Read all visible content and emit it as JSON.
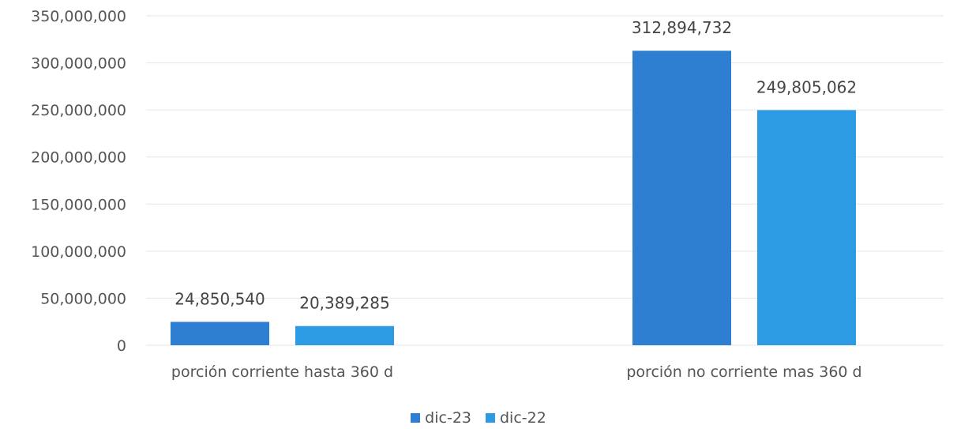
{
  "chart_data": {
    "type": "bar",
    "title": "",
    "xlabel": "",
    "ylabel": "",
    "categories": [
      "porción corriente hasta 360 d",
      "porción no corriente mas 360 d"
    ],
    "series": [
      {
        "name": "dic-23",
        "color": "#2e7fd2",
        "values": [
          24850540,
          312894732
        ]
      },
      {
        "name": "dic-22",
        "color": "#2d9be3",
        "values": [
          20389285,
          249805062
        ]
      }
    ],
    "data_labels": [
      [
        "24,850,540",
        "312,894,732"
      ],
      [
        "20,389,285",
        "249,805,062"
      ]
    ],
    "ylim": [
      0,
      350000000
    ],
    "yticks": [
      0,
      50000000,
      100000000,
      150000000,
      200000000,
      250000000,
      300000000,
      350000000
    ],
    "ytick_labels": [
      "0",
      "50,000,000",
      "100,000,000",
      "150,000,000",
      "200,000,000",
      "250,000,000",
      "300,000,000",
      "350,000,000"
    ],
    "grid": true,
    "legend_position": "bottom"
  }
}
